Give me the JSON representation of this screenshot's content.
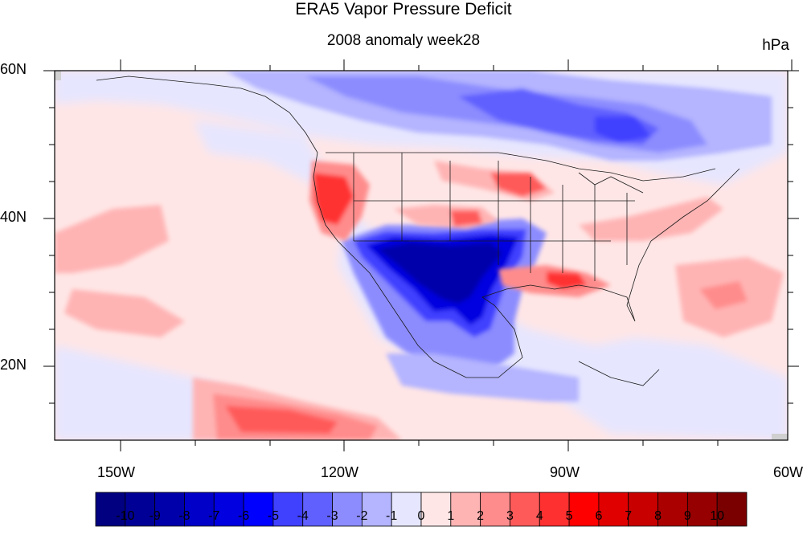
{
  "map": {
    "title": "ERA5 Vapor Pressure Deficit",
    "subtitle": "2008 anomaly week28",
    "units": "hPa",
    "lat_labels": [
      "60N",
      "40N",
      "20N"
    ],
    "lon_labels": [
      "150W",
      "120W",
      "90W",
      "60W"
    ],
    "extent": {
      "lon": [
        -159,
        -61
      ],
      "lat": [
        11,
        60
      ]
    }
  },
  "colorbar": {
    "labels": [
      "-10",
      "-9",
      "-8",
      "-7",
      "-6",
      "-5",
      "-4",
      "-3",
      "-2",
      "-1",
      "0",
      "1",
      "2",
      "3",
      "4",
      "5",
      "6",
      "7",
      "8",
      "9",
      "10"
    ],
    "colors": [
      "#000080",
      "#000096",
      "#0000AA",
      "#0000C8",
      "#0000E0",
      "#0000FF",
      "#4040FF",
      "#6060FF",
      "#8C8CFF",
      "#B4B4FF",
      "#E6E6FF",
      "#FFE6E6",
      "#FFB4B4",
      "#FF8C8C",
      "#FF5A5A",
      "#FF3030",
      "#FF0000",
      "#E00000",
      "#C80000",
      "#AA0000",
      "#960000",
      "#7A0000"
    ]
  }
}
